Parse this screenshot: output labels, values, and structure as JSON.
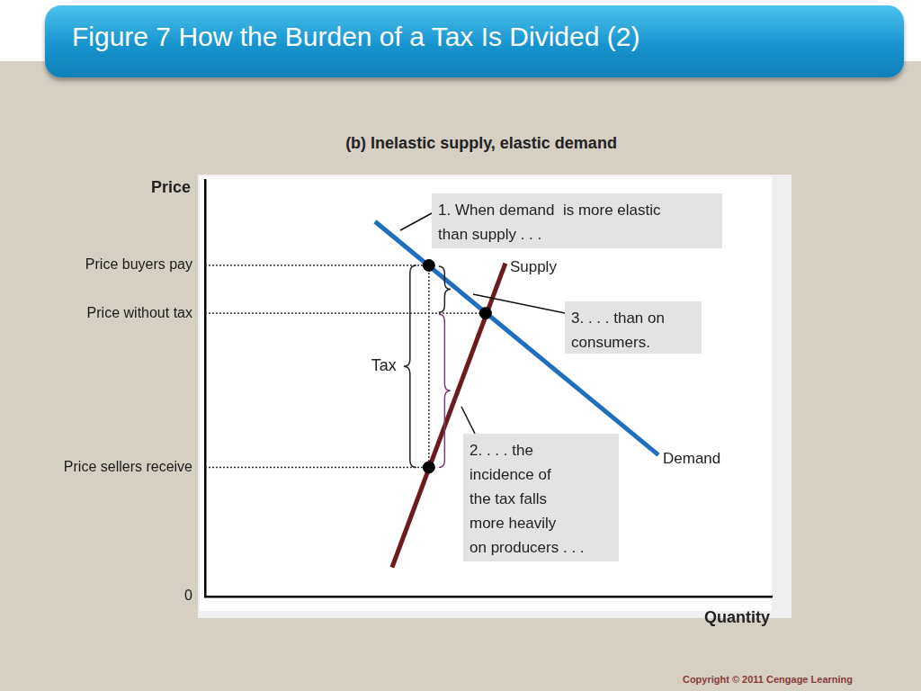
{
  "copyright": "Copyright © 2011  Cengage Learning",
  "chart_data": {
    "type": "line",
    "title": "Figure 7 How the Burden of a Tax Is Divided (2)",
    "subtitle": "(b) Inelastic supply, elastic demand",
    "x_label": "Quantity",
    "y_label": "Price",
    "xlim": [
      0,
      10
    ],
    "ylim": [
      0,
      10
    ],
    "xticks": [],
    "yticks": [
      0,
      {
        "value": 3.1,
        "label": "Price sellers receive"
      },
      {
        "value": 6.8,
        "label": "Price without tax"
      },
      {
        "value": 7.95,
        "label": "Price buyers pay"
      }
    ],
    "grid": false,
    "tick_labels": "y",
    "legend": "none",
    "series": [
      {
        "name": "Demand",
        "color": "#1f6fc0",
        "x": [
          3,
          8
        ],
        "values": [
          9,
          3.4
        ]
      },
      {
        "name": "Supply",
        "color": "#6b1b1b",
        "x": [
          3.3,
          5.3
        ],
        "values": [
          0.7,
          8
        ]
      }
    ],
    "markers": {
      "x": [
        3.95,
        4.95,
        3.95
      ],
      "values": [
        7.95,
        6.8,
        3.1
      ]
    },
    "tax_label": "Tax",
    "annotations": [
      {
        "lines": [
          "1. When demand  is more elastic",
          "than supply . . ."
        ]
      },
      {
        "lines": [
          "2. . . . the",
          "incidence of",
          "the tax falls",
          "more heavily",
          "on producers . . ."
        ]
      },
      {
        "lines": [
          "3. . . . than on",
          "consumers."
        ]
      }
    ]
  }
}
